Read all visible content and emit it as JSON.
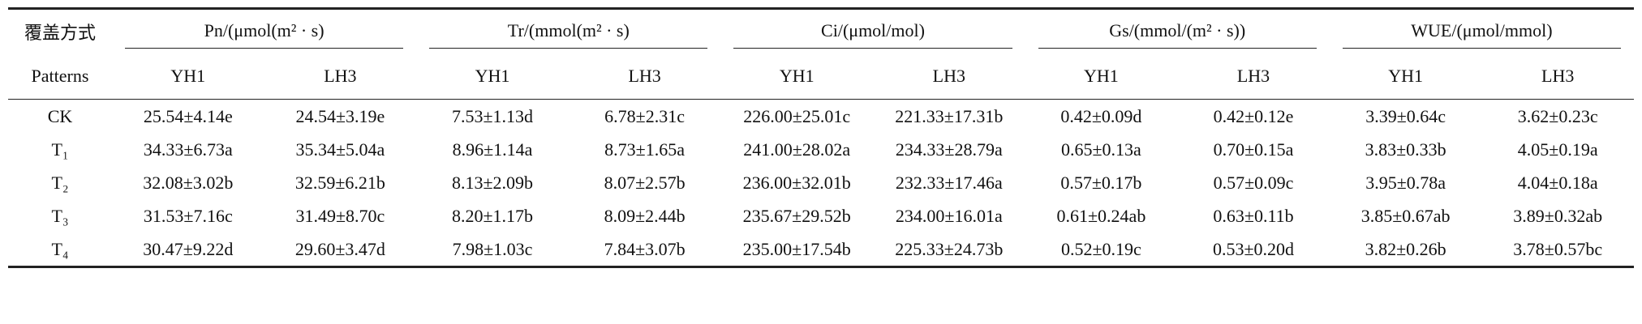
{
  "table": {
    "corner": [
      "覆盖方式",
      "Patterns"
    ],
    "groups": [
      "Pn/(μmol(m² · s)",
      "Tr/(mmol(m² · s)",
      "Ci/(μmol/mol)",
      "Gs/(mmol/(m² · s))",
      "WUE/(μmol/mmol)"
    ],
    "subheaders": [
      "YH1",
      "LH3",
      "YH1",
      "LH3",
      "YH1",
      "LH3",
      "YH1",
      "LH3",
      "YH1",
      "LH3"
    ],
    "rows": [
      {
        "label": "CK",
        "cells": [
          "25.54±4.14e",
          "24.54±3.19e",
          "7.53±1.13d",
          "6.78±2.31c",
          "226.00±25.01c",
          "221.33±17.31b",
          "0.42±0.09d",
          "0.42±0.12e",
          "3.39±0.64c",
          "3.62±0.23c"
        ]
      },
      {
        "label": "T₁",
        "cells": [
          "34.33±6.73a",
          "35.34±5.04a",
          "8.96±1.14a",
          "8.73±1.65a",
          "241.00±28.02a",
          "234.33±28.79a",
          "0.65±0.13a",
          "0.70±0.15a",
          "3.83±0.33b",
          "4.05±0.19a"
        ]
      },
      {
        "label": "T₂",
        "cells": [
          "32.08±3.02b",
          "32.59±6.21b",
          "8.13±2.09b",
          "8.07±2.57b",
          "236.00±32.01b",
          "232.33±17.46a",
          "0.57±0.17b",
          "0.57±0.09c",
          "3.95±0.78a",
          "4.04±0.18a"
        ]
      },
      {
        "label": "T₃",
        "cells": [
          "31.53±7.16c",
          "31.49±8.70c",
          "8.20±1.17b",
          "8.09±2.44b",
          "235.67±29.52b",
          "234.00±16.01a",
          "0.61±0.24ab",
          "0.63±0.11b",
          "3.85±0.67ab",
          "3.89±0.32ab"
        ]
      },
      {
        "label": "T₄",
        "cells": [
          "30.47±9.22d",
          "29.60±3.47d",
          "7.98±1.03c",
          "7.84±3.07b",
          "235.00±17.54b",
          "225.33±24.73b",
          "0.52±0.19c",
          "0.53±0.20d",
          "3.82±0.26b",
          "3.78±0.57bc"
        ]
      }
    ]
  }
}
